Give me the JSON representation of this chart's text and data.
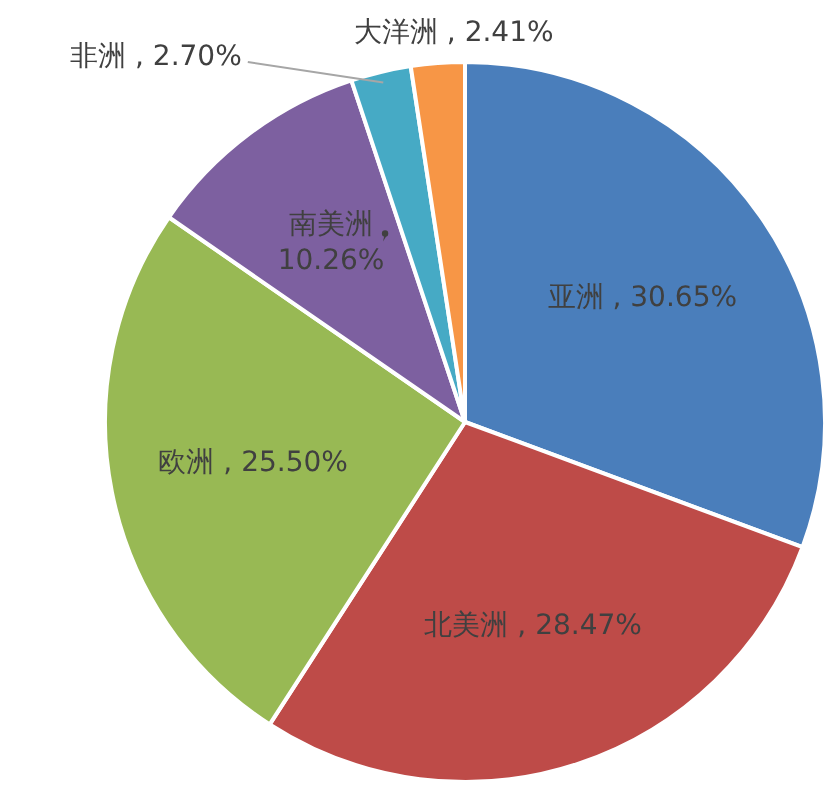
{
  "chart_data": {
    "type": "pie",
    "categories": [
      "亚洲",
      "北美洲",
      "欧洲",
      "南美洲",
      "非洲",
      "大洋洲"
    ],
    "values": [
      30.65,
      28.47,
      25.5,
      10.26,
      2.7,
      2.41
    ],
    "value_labels": [
      "30.65%",
      "28.47%",
      "25.50%",
      "10.26%",
      "2.70%",
      "2.41%"
    ],
    "colors": [
      "#4a7ebb",
      "#be4b48",
      "#98b954",
      "#7d60a0",
      "#46aac5",
      "#f79646"
    ],
    "legend": false
  }
}
